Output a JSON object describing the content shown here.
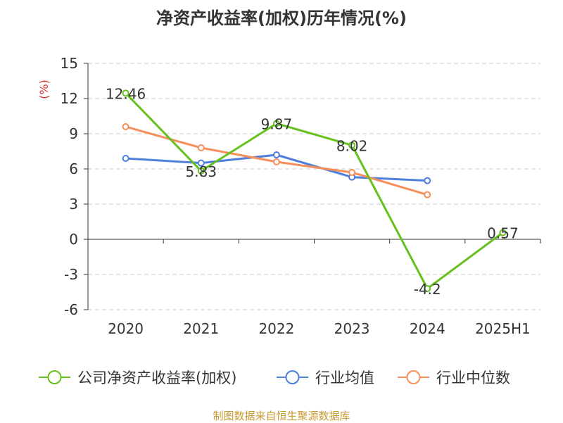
{
  "title": "净资产收益率(加权)历年情况(%)",
  "source_note": "制图数据来自恒生聚源数据库",
  "colors": {
    "series_roe": "#66c11f",
    "series_industry_avg": "#4e7fdc",
    "series_industry_median": "#f58f5b",
    "axis_unit": "#e03030",
    "grid": "#cccccc",
    "axis": "#333333",
    "text": "#333333"
  },
  "chart_data": {
    "type": "line",
    "title": "净资产收益率(加权)历年情况(%)",
    "ylabel": "(%)",
    "xlabel": "",
    "categories": [
      "2020",
      "2021",
      "2022",
      "2023",
      "2024",
      "2025H1"
    ],
    "ylim": [
      -6,
      15
    ],
    "yticks": [
      15,
      12,
      9,
      6,
      3,
      0,
      -3,
      -6
    ],
    "ytick_labels": [
      "15",
      "12",
      "9",
      "6",
      "3",
      "0",
      "-3",
      "-6"
    ],
    "grid": true,
    "legend_position": "bottom",
    "series": [
      {
        "name": "公司净资产收益率(加权)",
        "color": "#66c11f",
        "values": [
          12.46,
          5.83,
          9.87,
          8.02,
          -4.2,
          0.57
        ],
        "data_labels": [
          "12.46",
          "5.83",
          "9.87",
          "8.02",
          "-4.2",
          "0.57"
        ]
      },
      {
        "name": "行业均值",
        "color": "#4e7fdc",
        "values": [
          6.9,
          6.5,
          7.2,
          5.3,
          5.0,
          null
        ]
      },
      {
        "name": "行业中位数",
        "color": "#f58f5b",
        "values": [
          9.6,
          7.8,
          6.6,
          5.7,
          3.8,
          null
        ]
      }
    ]
  }
}
